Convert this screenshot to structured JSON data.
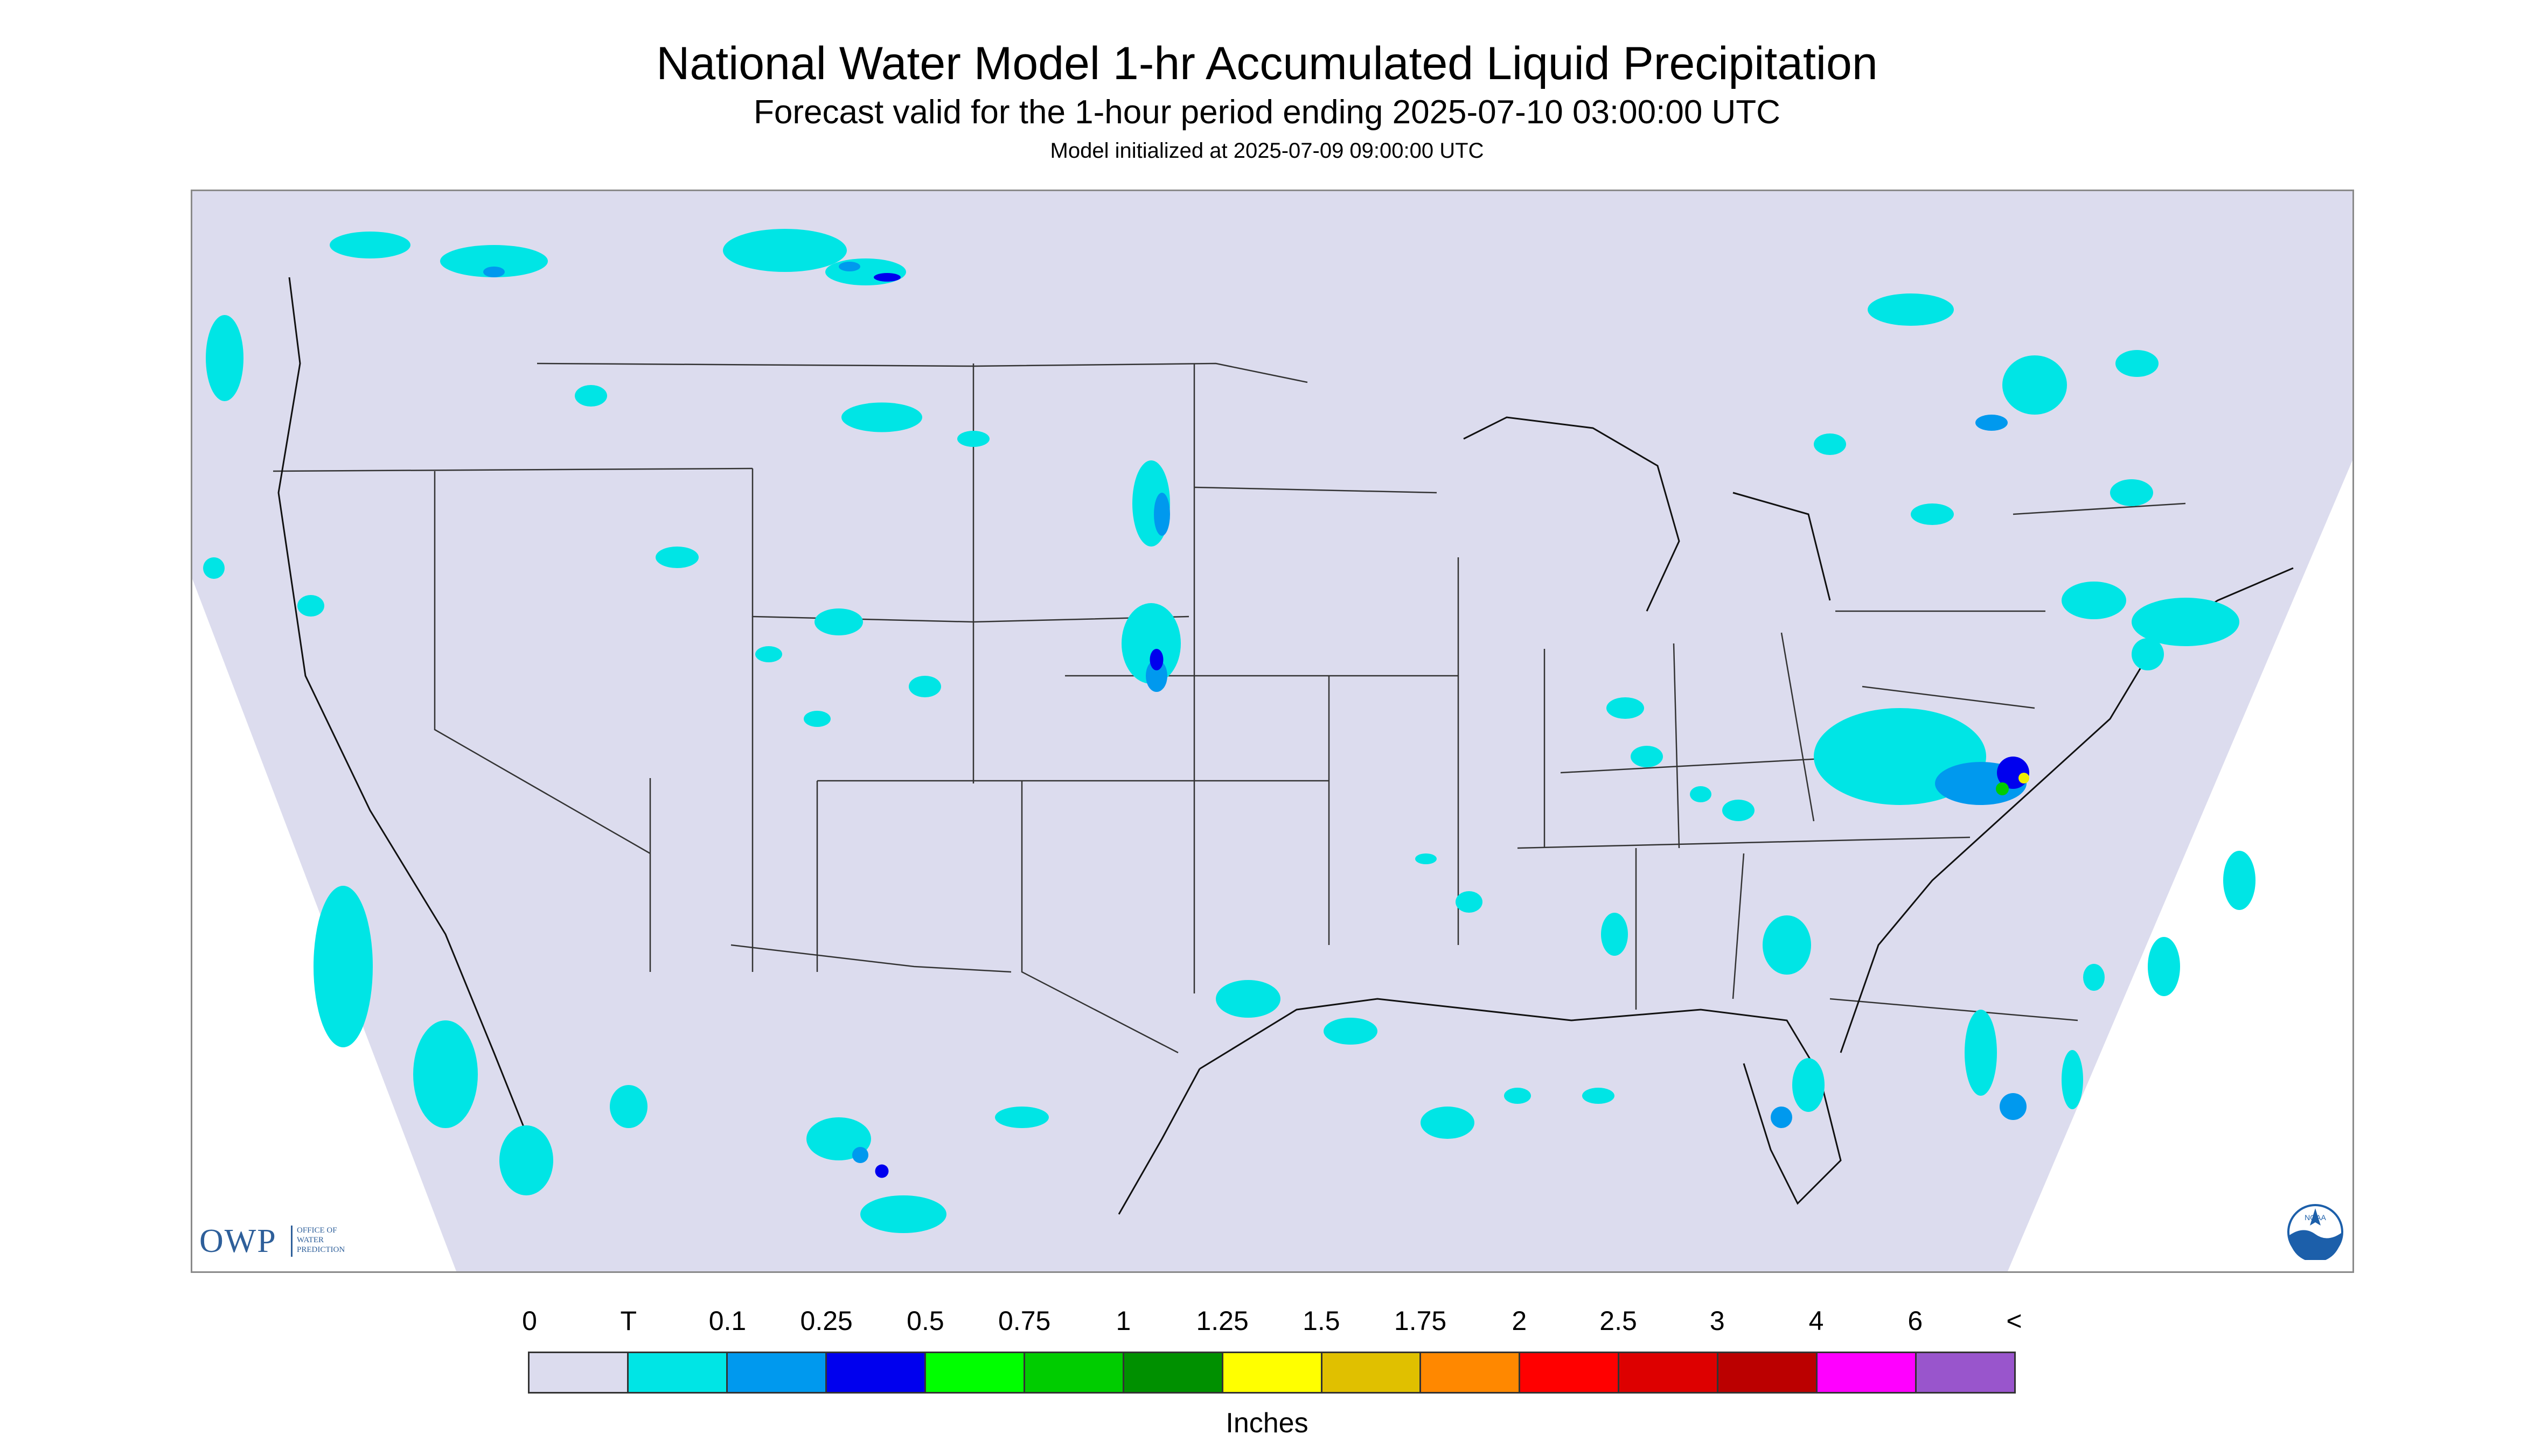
{
  "header": {
    "title": "National Water Model 1-hr Accumulated Liquid Precipitation",
    "subtitle": "Forecast valid for the 1-hour period ending 2025-07-10 03:00:00 UTC",
    "init": "Model initialized at 2025-07-09 09:00:00 UTC"
  },
  "map": {
    "background_color": "#dcdcee",
    "precip_colors": {
      "trace": "#00e5e5",
      "light": "#0099ee",
      "moderate": "#0000ee",
      "heavy": "#00cc00",
      "veryheavy": "#eeee00"
    }
  },
  "logos": {
    "owp_letters": "OWP",
    "owp_lines": [
      "OFFICE OF",
      "WATER",
      "PREDICTION"
    ],
    "noaa_text": "NOAA"
  },
  "legend": {
    "ticks": [
      "0",
      "T",
      "0.1",
      "0.25",
      "0.5",
      "0.75",
      "1",
      "1.25",
      "1.5",
      "1.75",
      "2",
      "2.5",
      "3",
      "4",
      "6",
      "<"
    ],
    "colors": [
      "#dcdcee",
      "#00e5e5",
      "#0099ee",
      "#0000ee",
      "#00ff00",
      "#00cc00",
      "#009000",
      "#ffff00",
      "#e0c000",
      "#ff8800",
      "#ff0000",
      "#dd0000",
      "#bb0000",
      "#ff00ff",
      "#9955cc"
    ],
    "units": "Inches"
  }
}
